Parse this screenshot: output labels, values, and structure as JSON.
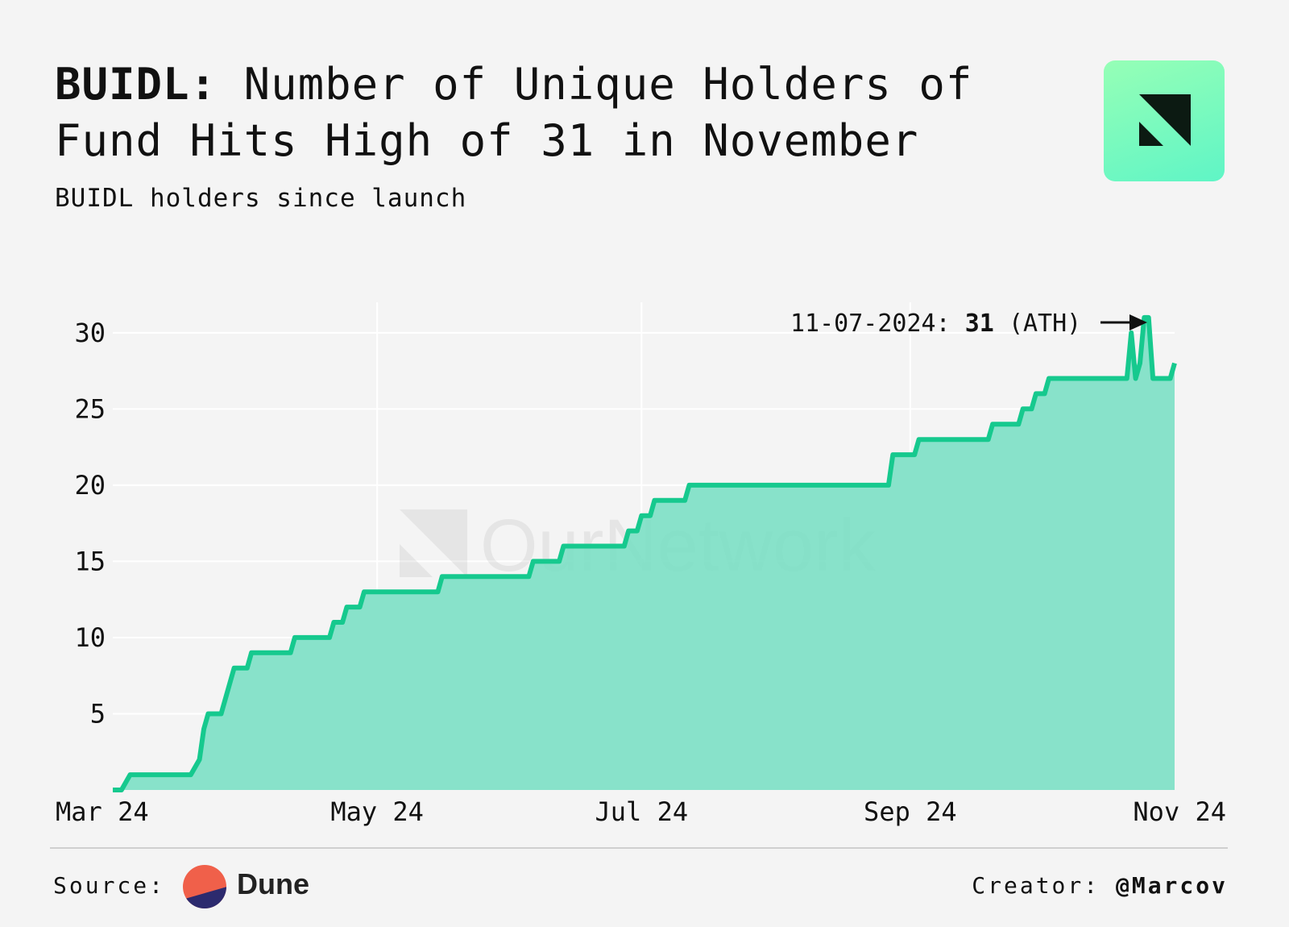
{
  "header": {
    "title_bold": "BUIDL:",
    "title_rest": " Number of Unique Holders of Fund Hits High of 31 in November",
    "subtitle": "BUIDL holders since launch"
  },
  "watermark": "OurNetwork",
  "annotation": {
    "date": "11-07-2024:",
    "value": "31",
    "suffix": "(ATH)"
  },
  "footer": {
    "source_label": "Source:",
    "source_name": "Dune",
    "creator_label": "Creator:",
    "creator_handle": "@Marcov"
  },
  "colors": {
    "line": "#16c98e",
    "fill": "#7ee0c6",
    "grid": "#ffffff",
    "background": "#f4f4f4"
  },
  "chart_data": {
    "type": "area",
    "x_axis": "date",
    "x_ticks": [
      {
        "date": "2024-03-01",
        "label": "Mar 24"
      },
      {
        "date": "2024-05-01",
        "label": "May 24"
      },
      {
        "date": "2024-07-01",
        "label": "Jul 24"
      },
      {
        "date": "2024-09-01",
        "label": "Sep 24"
      },
      {
        "date": "2024-11-01",
        "label": "Nov 24"
      }
    ],
    "y_ticks": [
      5,
      10,
      15,
      20,
      25,
      30
    ],
    "xlim": [
      "2024-03-01",
      "2024-11-01"
    ],
    "ylim": [
      0,
      32
    ],
    "grid": true,
    "points": [
      [
        "2024-03-01",
        0
      ],
      [
        "2024-03-03",
        0
      ],
      [
        "2024-03-05",
        1
      ],
      [
        "2024-03-19",
        1
      ],
      [
        "2024-03-21",
        2
      ],
      [
        "2024-03-22",
        4
      ],
      [
        "2024-03-23",
        5
      ],
      [
        "2024-03-26",
        5
      ],
      [
        "2024-03-29",
        8
      ],
      [
        "2024-04-01",
        8
      ],
      [
        "2024-04-02",
        9
      ],
      [
        "2024-04-11",
        9
      ],
      [
        "2024-04-12",
        10
      ],
      [
        "2024-04-20",
        10
      ],
      [
        "2024-04-21",
        11
      ],
      [
        "2024-04-23",
        11
      ],
      [
        "2024-04-24",
        12
      ],
      [
        "2024-04-27",
        12
      ],
      [
        "2024-04-28",
        13
      ],
      [
        "2024-05-15",
        13
      ],
      [
        "2024-05-16",
        14
      ],
      [
        "2024-06-05",
        14
      ],
      [
        "2024-06-06",
        15
      ],
      [
        "2024-06-12",
        15
      ],
      [
        "2024-06-13",
        16
      ],
      [
        "2024-06-27",
        16
      ],
      [
        "2024-06-28",
        17
      ],
      [
        "2024-06-30",
        17
      ],
      [
        "2024-07-01",
        18
      ],
      [
        "2024-07-03",
        18
      ],
      [
        "2024-07-04",
        19
      ],
      [
        "2024-07-11",
        19
      ],
      [
        "2024-07-12",
        20
      ],
      [
        "2024-08-27",
        20
      ],
      [
        "2024-08-28",
        22
      ],
      [
        "2024-09-02",
        22
      ],
      [
        "2024-09-03",
        23
      ],
      [
        "2024-09-19",
        23
      ],
      [
        "2024-09-20",
        24
      ],
      [
        "2024-09-26",
        24
      ],
      [
        "2024-09-27",
        25
      ],
      [
        "2024-09-29",
        25
      ],
      [
        "2024-09-30",
        26
      ],
      [
        "2024-10-02",
        26
      ],
      [
        "2024-10-03",
        27
      ],
      [
        "2024-10-21",
        27
      ],
      [
        "2024-10-22",
        30
      ],
      [
        "2024-10-23",
        27
      ],
      [
        "2024-10-24",
        28
      ],
      [
        "2024-10-25",
        31
      ],
      [
        "2024-10-26",
        31
      ],
      [
        "2024-10-27",
        27
      ],
      [
        "2024-10-31",
        27
      ],
      [
        "2024-11-01",
        28
      ]
    ]
  }
}
